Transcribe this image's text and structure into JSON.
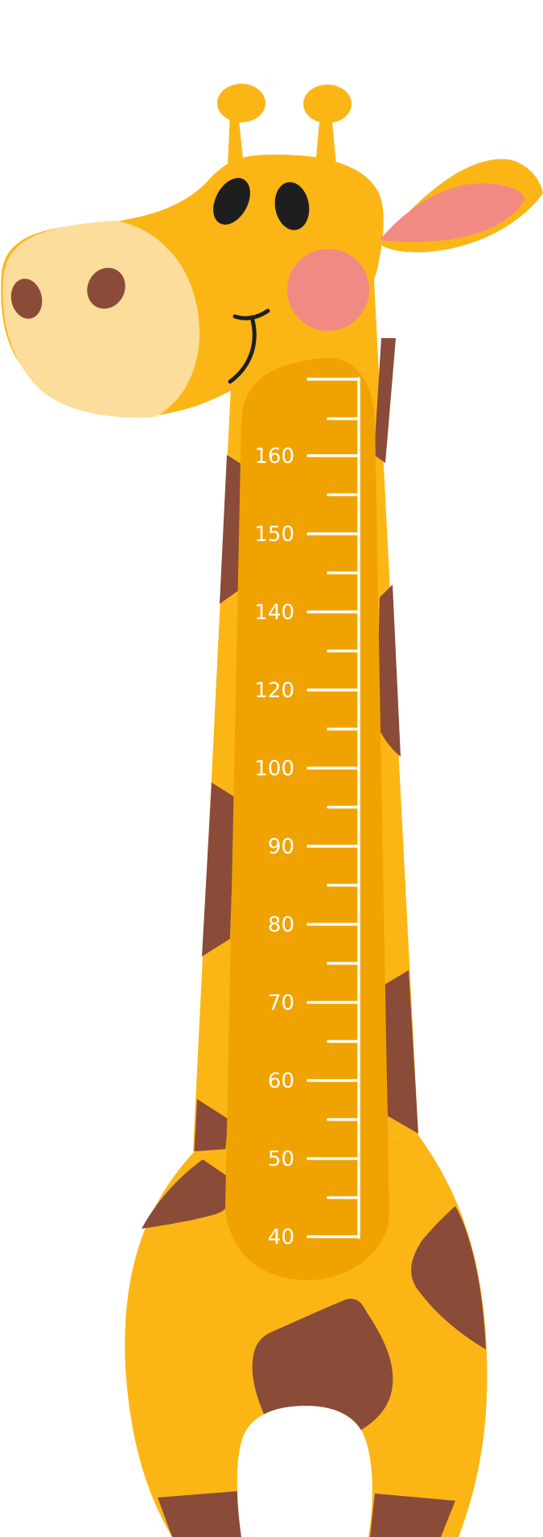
{
  "illustration": {
    "subject": "giraffe-height-chart",
    "colors": {
      "body": "#FBB616",
      "body_dark": "#F0A300",
      "spots": "#8A4B38",
      "muzzle": "#FDDD9B",
      "cheek": "#F28A84",
      "eye": "#1E1E1E",
      "nostril": "#8A4B38",
      "scale_line": "#ffffff"
    }
  },
  "height_scale": {
    "labeled_marks": [
      "40",
      "50",
      "60",
      "70",
      "80",
      "90",
      "100",
      "120",
      "140",
      "150",
      "160"
    ]
  }
}
